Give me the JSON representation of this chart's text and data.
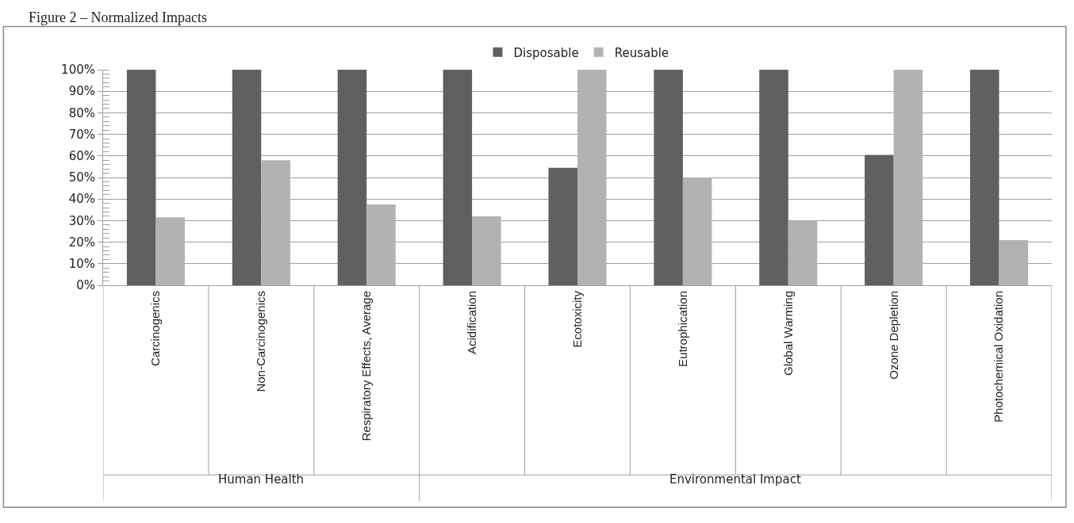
{
  "chart_data": {
    "type": "bar",
    "title": "Figure 2 – Normalized Impacts",
    "categories": [
      "Carcinogenics",
      "Non-Carcinogenics",
      "Respiratory Effects, Average",
      "Acidification",
      "Ecotoxicity",
      "Eutrophication",
      "Global Warming",
      "Ozone Depletion",
      "Photochemical Oxidation"
    ],
    "series": [
      {
        "name": "Disposable",
        "color": "#606060",
        "values": [
          100,
          100,
          100,
          100,
          54.5,
          100,
          100,
          60.5,
          100
        ]
      },
      {
        "name": "Reusable",
        "color": "#b2b2b2",
        "values": [
          31.5,
          58,
          37.5,
          32,
          100,
          50,
          30,
          100,
          21
        ]
      }
    ],
    "ylim": [
      0,
      100
    ],
    "yticks": [
      {
        "value": 0,
        "label": "0%"
      },
      {
        "value": 10,
        "label": "10%"
      },
      {
        "value": 20,
        "label": "20%"
      },
      {
        "value": 30,
        "label": "30%"
      },
      {
        "value": 40,
        "label": "40%"
      },
      {
        "value": 50,
        "label": "50%"
      },
      {
        "value": 60,
        "label": "60%"
      },
      {
        "value": 70,
        "label": "70%"
      },
      {
        "value": 80,
        "label": "80%"
      },
      {
        "value": 90,
        "label": "90%"
      },
      {
        "value": 100,
        "label": "100%"
      }
    ],
    "annotations": [
      "Human Health",
      "Environmental Impact"
    ],
    "grid": "y",
    "legend": "top"
  }
}
